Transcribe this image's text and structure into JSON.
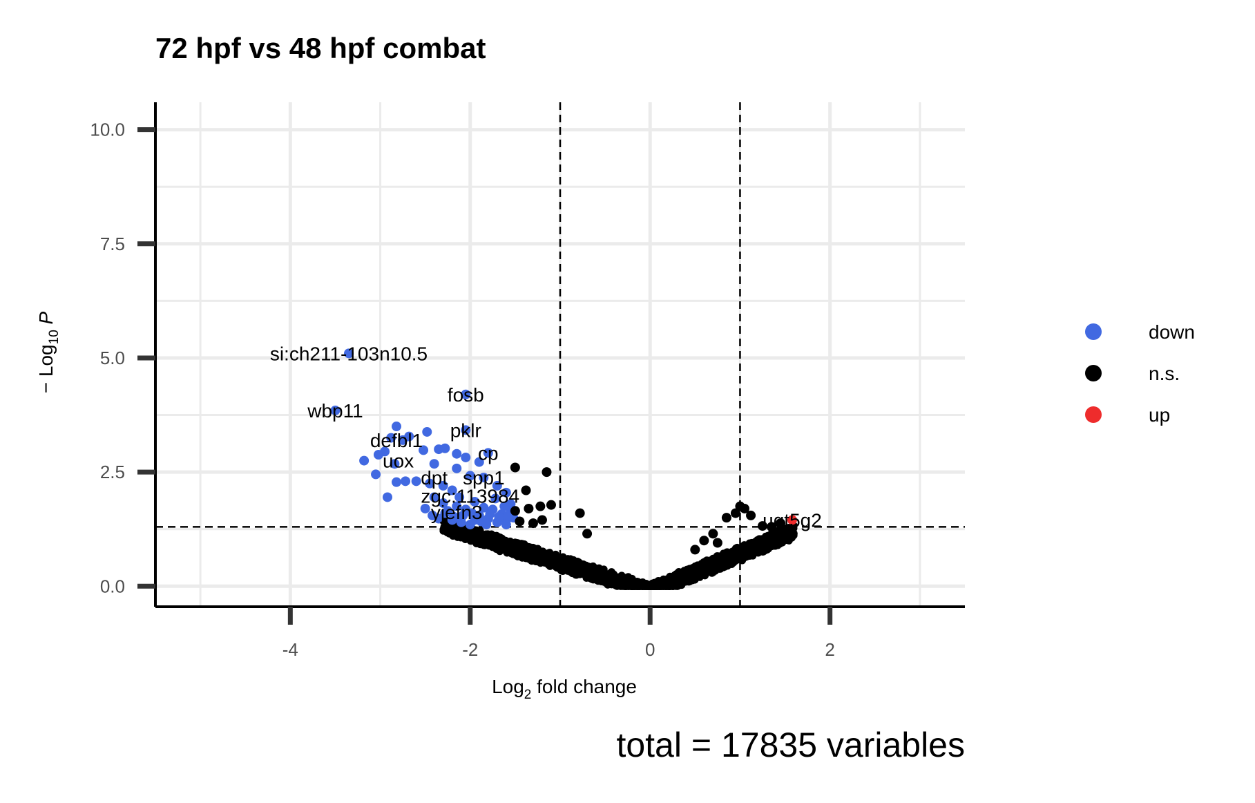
{
  "chart_data": {
    "type": "scatter",
    "title": "72 hpf vs 48 hpf combat",
    "xlabel": "fold change",
    "xlabel_prefix": "Log",
    "xlabel_sub": "2",
    "ylabel_prefix": "− Log",
    "ylabel_sub": "10",
    "ylabel_var": "P",
    "xlim": [
      -5.5,
      3.5
    ],
    "ylim": [
      -0.45,
      10.6
    ],
    "x_ticks": [
      -4,
      -2,
      0,
      2
    ],
    "x_tick_labels": [
      "-4",
      "-2",
      "0",
      "2"
    ],
    "y_ticks": [
      0,
      2.5,
      5,
      7.5,
      10
    ],
    "y_tick_labels": [
      "0.0",
      "2.5",
      "5.0",
      "7.5",
      "10.0"
    ],
    "fc_cutoff": 1,
    "p_cutoff": 1.3,
    "grid": true,
    "legend_position": "right",
    "caption": "total = 17835 variables",
    "series": [
      {
        "name": "down",
        "color": "#4169E1",
        "points": [
          [
            -3.35,
            5.1
          ],
          [
            -3.5,
            3.85
          ],
          [
            -2.05,
            4.2
          ],
          [
            -2.82,
            3.5
          ],
          [
            -2.05,
            3.42
          ],
          [
            -2.48,
            3.38
          ],
          [
            -2.68,
            3.28
          ],
          [
            -2.88,
            3.25
          ],
          [
            -2.75,
            3.2
          ],
          [
            -2.95,
            2.95
          ],
          [
            -3.02,
            2.88
          ],
          [
            -3.18,
            2.75
          ],
          [
            -2.84,
            2.68
          ],
          [
            -2.52,
            2.98
          ],
          [
            -2.35,
            3.0
          ],
          [
            -2.28,
            3.02
          ],
          [
            -2.15,
            2.9
          ],
          [
            -2.05,
            2.82
          ],
          [
            -1.8,
            2.92
          ],
          [
            -1.9,
            2.72
          ],
          [
            -2.15,
            2.58
          ],
          [
            -2.4,
            2.68
          ],
          [
            -3.05,
            2.45
          ],
          [
            -2.92,
            1.95
          ],
          [
            -2.82,
            2.28
          ],
          [
            -2.72,
            2.3
          ],
          [
            -2.6,
            2.3
          ],
          [
            -2.45,
            2.25
          ],
          [
            -2.3,
            2.2
          ],
          [
            -2.2,
            2.1
          ],
          [
            -2.0,
            2.42
          ],
          [
            -1.85,
            2.38
          ],
          [
            -1.7,
            2.2
          ],
          [
            -1.6,
            2.05
          ],
          [
            -1.55,
            1.8
          ],
          [
            -2.4,
            1.95
          ],
          [
            -2.3,
            1.82
          ],
          [
            -2.25,
            1.65
          ],
          [
            -2.15,
            1.75
          ],
          [
            -2.05,
            1.68
          ],
          [
            -1.95,
            1.85
          ],
          [
            -1.85,
            1.72
          ],
          [
            -1.75,
            1.68
          ],
          [
            -1.65,
            1.58
          ],
          [
            -1.6,
            1.45
          ],
          [
            -1.55,
            1.62
          ],
          [
            -2.5,
            1.7
          ],
          [
            -2.42,
            1.55
          ],
          [
            -2.35,
            1.48
          ],
          [
            -2.2,
            1.45
          ],
          [
            -2.1,
            1.4
          ],
          [
            -2.0,
            1.35
          ],
          [
            -1.9,
            1.55
          ],
          [
            -1.8,
            1.48
          ],
          [
            -1.7,
            1.4
          ],
          [
            -1.6,
            1.35
          ],
          [
            -1.52,
            1.5
          ],
          [
            -2.12,
            1.95
          ],
          [
            -1.98,
            1.6
          ],
          [
            -1.88,
            1.42
          ],
          [
            -1.78,
            1.58
          ],
          [
            -1.68,
            1.52
          ],
          [
            -2.28,
            1.6
          ],
          [
            -2.18,
            1.52
          ],
          [
            -1.72,
            1.92
          ],
          [
            -1.62,
            1.75
          ],
          [
            -2.08,
            1.55
          ],
          [
            -1.95,
            1.45
          ],
          [
            -1.82,
            1.35
          ],
          [
            -1.58,
            1.55
          ]
        ]
      },
      {
        "name": "n.s.",
        "color": "#000000",
        "points": [
          [
            -1.5,
            2.6
          ],
          [
            -1.15,
            2.5
          ],
          [
            -1.38,
            2.1
          ],
          [
            -1.5,
            1.65
          ],
          [
            -1.35,
            1.7
          ],
          [
            -1.22,
            1.75
          ],
          [
            -1.1,
            1.78
          ],
          [
            -0.78,
            1.6
          ],
          [
            -1.45,
            1.42
          ],
          [
            -1.3,
            1.38
          ],
          [
            -1.2,
            1.45
          ],
          [
            -0.7,
            1.15
          ],
          [
            1.0,
            1.75
          ],
          [
            1.05,
            1.7
          ],
          [
            0.95,
            1.6
          ],
          [
            0.85,
            1.5
          ],
          [
            1.12,
            1.55
          ],
          [
            1.25,
            1.32
          ],
          [
            1.35,
            1.3
          ],
          [
            1.45,
            1.38
          ],
          [
            0.7,
            1.15
          ],
          [
            0.6,
            1.0
          ],
          [
            0.75,
            0.95
          ],
          [
            0.5,
            0.8
          ]
        ]
      },
      {
        "name": "up",
        "color": "#EE2C2C",
        "points": [
          [
            1.58,
            1.45
          ]
        ]
      }
    ],
    "labels": [
      {
        "text": "si:ch211-103n10.5",
        "x": -3.35,
        "y": 5.1
      },
      {
        "text": "fosb",
        "x": -2.05,
        "y": 4.2
      },
      {
        "text": "wbp11",
        "x": -3.5,
        "y": 3.85
      },
      {
        "text": "pklr",
        "x": -2.05,
        "y": 3.42
      },
      {
        "text": "defbl1",
        "x": -2.82,
        "y": 3.2
      },
      {
        "text": "cp",
        "x": -1.8,
        "y": 2.92
      },
      {
        "text": "uox",
        "x": -2.8,
        "y": 2.75
      },
      {
        "text": "dpt",
        "x": -2.4,
        "y": 2.38
      },
      {
        "text": "spp1",
        "x": -1.85,
        "y": 2.38
      },
      {
        "text": "zgc:113984",
        "x": -2.0,
        "y": 1.98
      },
      {
        "text": "yjefn3",
        "x": -2.15,
        "y": 1.62
      },
      {
        "text": "ugt5g2",
        "x": 1.58,
        "y": 1.45
      }
    ]
  }
}
